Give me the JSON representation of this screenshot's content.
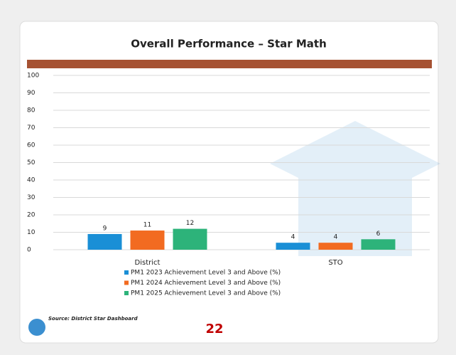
{
  "chart_data": {
    "type": "bar",
    "title": "Overall Performance – Star Math",
    "categories": [
      "District",
      "STO"
    ],
    "series": [
      {
        "name": "PM1 2023 Achievement Level 3 and Above (%)",
        "color": "#1a8fd6",
        "values": [
          9,
          4
        ]
      },
      {
        "name": "PM1 2024 Achievement Level 3 and Above (%)",
        "color": "#f26b21",
        "values": [
          11,
          4
        ]
      },
      {
        "name": "PM1 2025 Achievement Level 3 and Above (%)",
        "color": "#2db37a",
        "values": [
          12,
          6
        ]
      }
    ],
    "ylim": [
      0,
      100
    ],
    "yticks": [
      0,
      10,
      20,
      30,
      40,
      50,
      60,
      70,
      80,
      90,
      100
    ],
    "grid": true
  },
  "footer": {
    "source": "Source: District Star Dashboard",
    "page_number": "22"
  }
}
